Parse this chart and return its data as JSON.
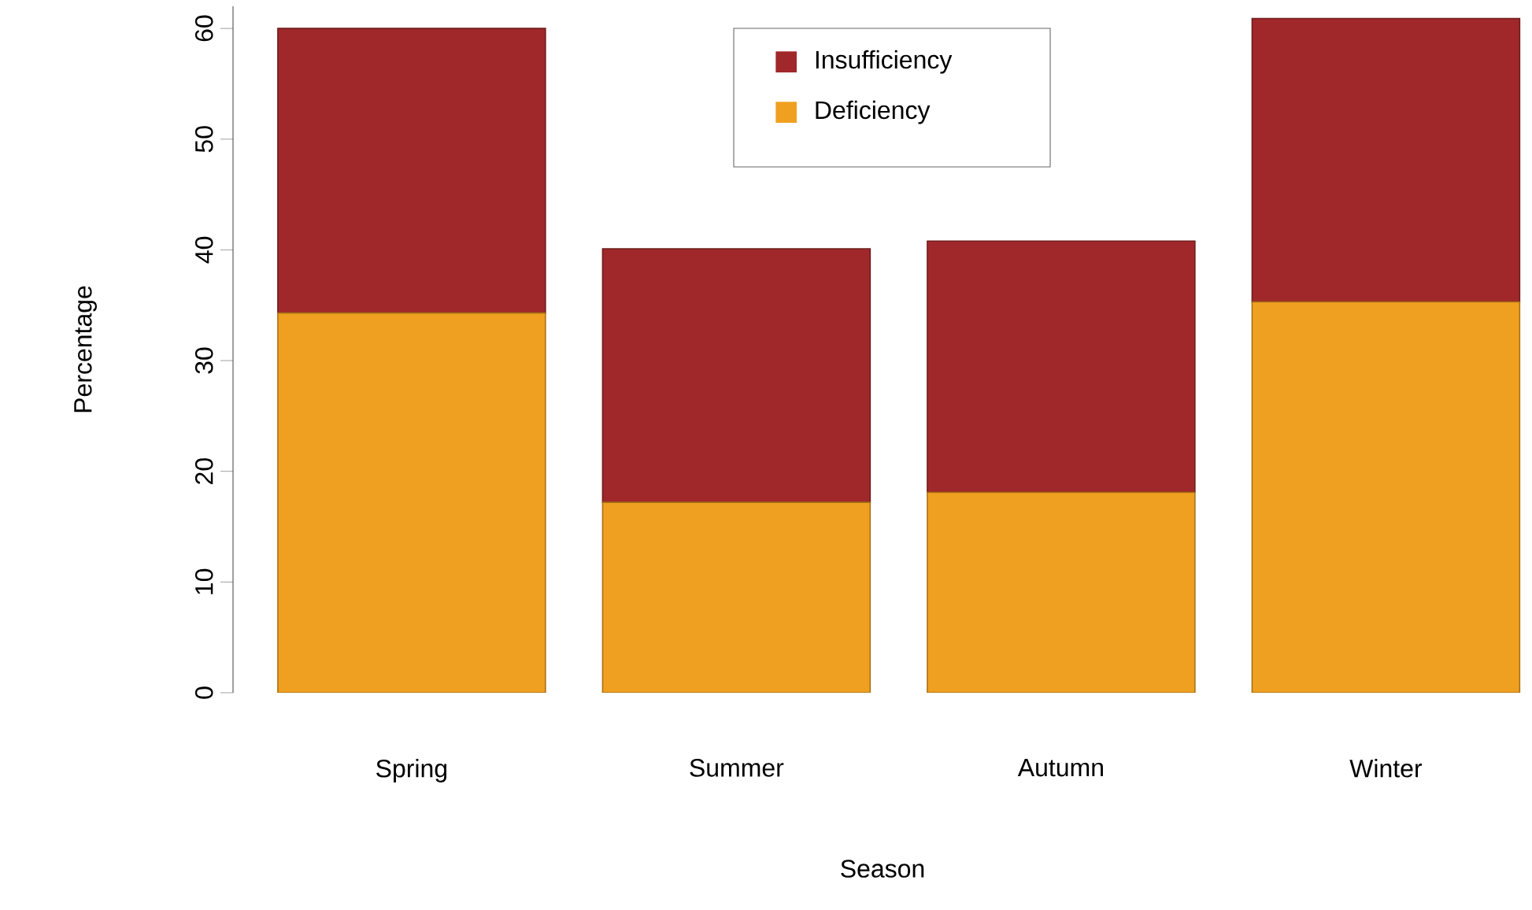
{
  "chart_data": {
    "type": "bar",
    "stacked": true,
    "xlabel": "Season",
    "ylabel": "Percentage",
    "categories": [
      "Spring",
      "Summer",
      "Autumn",
      "Winter"
    ],
    "series": [
      {
        "name": "Deficiency",
        "color": "#f0a020",
        "values": [
          34.3,
          17.2,
          18.1,
          35.3
        ]
      },
      {
        "name": "Insufficiency",
        "color": "#a0282a",
        "values": [
          25.7,
          22.9,
          22.7,
          25.6
        ]
      }
    ],
    "ylim": [
      0,
      62
    ],
    "yticks": [
      0,
      10,
      20,
      30,
      40,
      50,
      60
    ],
    "legend": "top",
    "grid": false
  }
}
